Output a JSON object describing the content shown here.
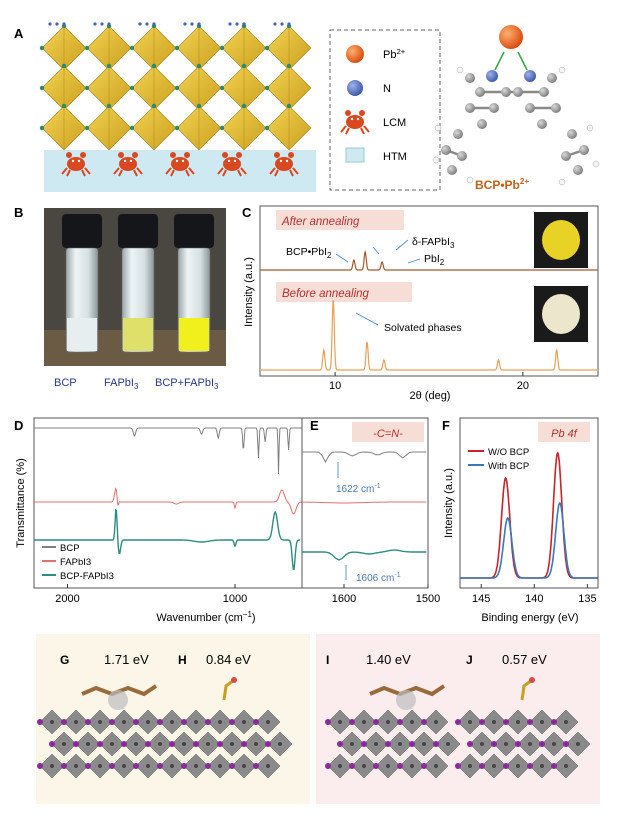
{
  "panels": {
    "A": {
      "letter": "A",
      "legend": [
        {
          "label": "Pb",
          "sup": "2+",
          "color": "#e8621a"
        },
        {
          "label": "N",
          "color": "#4a62b8"
        },
        {
          "label": "LCM",
          "color": "#d9481e"
        },
        {
          "label": "HTM",
          "color": "#bfe3ef"
        }
      ],
      "molecule_label": "BCP•Pb",
      "molecule_sup": "2+"
    },
    "B": {
      "letter": "B",
      "vials": [
        {
          "label": "BCP",
          "liquid": "#e7eef0"
        },
        {
          "label": "FAPbI",
          "sub": "3",
          "liquid": "#dfe06a"
        },
        {
          "label": "BCP+FAPbI",
          "sub": "3",
          "liquid": "#f1ef1c"
        }
      ]
    },
    "C": {
      "letter": "C",
      "after_label": "After annealing",
      "before_label": "Before annealing",
      "ann_bcp": "BCP•PbI",
      "ann_bcp_sub": "2",
      "ann_delta": "δ-FAPbI",
      "ann_delta_sub": "3",
      "ann_pbi": "PbI",
      "ann_pbi_sub": "2",
      "ann_solv": "Solvated phases",
      "ylabel": "Intensity (a.u.)",
      "xlabel": "2θ (deg)",
      "xticks": [
        10,
        20
      ],
      "xlim": [
        6,
        24
      ],
      "after_color": "#a35a2a",
      "before_color": "#e8a055"
    },
    "D": {
      "letter": "D",
      "ylabel": "Transmittance (%)",
      "xlabel": "Wavenumber (cm",
      "xlabel_sup": "−1",
      "xlabel_end": ")",
      "xticks": [
        2000,
        1000
      ],
      "xlim": [
        2200,
        600
      ],
      "legend": [
        {
          "label": "BCP",
          "color": "#808080"
        },
        {
          "label": "FAPbI3",
          "color": "#e07070"
        },
        {
          "label": "BCP-FAPbI3",
          "color": "#2e8c80"
        }
      ]
    },
    "E": {
      "letter": "E",
      "title": "-C=N-",
      "ann1": "1622 cm",
      "ann1_sup": "-1",
      "ann2": "1606 cm",
      "ann2_sup": "-1",
      "xticks": [
        1600,
        1500
      ],
      "xlim": [
        1650,
        1500
      ]
    },
    "F": {
      "letter": "F",
      "title": "Pb 4f",
      "ylabel": "Intensity (a.u.)",
      "xlabel": "Binding energy (eV)",
      "xticks": [
        145,
        140,
        135
      ],
      "xlim": [
        147,
        134
      ],
      "legend": [
        {
          "label": "W/O BCP",
          "color": "#c8242c"
        },
        {
          "label": "With BCP",
          "color": "#3a7ab8"
        }
      ],
      "peaks_wo": [
        {
          "center": 142.7,
          "height": 1.0
        },
        {
          "center": 137.8,
          "height": 1.25
        }
      ],
      "peaks_with": [
        {
          "center": 142.5,
          "height": 0.6
        },
        {
          "center": 137.6,
          "height": 0.75
        }
      ]
    },
    "G": {
      "letter": "G",
      "energy": "1.71 eV"
    },
    "H": {
      "letter": "H",
      "energy": "0.84 eV"
    },
    "I": {
      "letter": "I",
      "energy": "1.40 eV"
    },
    "J": {
      "letter": "J",
      "energy": "0.57 eV"
    }
  }
}
